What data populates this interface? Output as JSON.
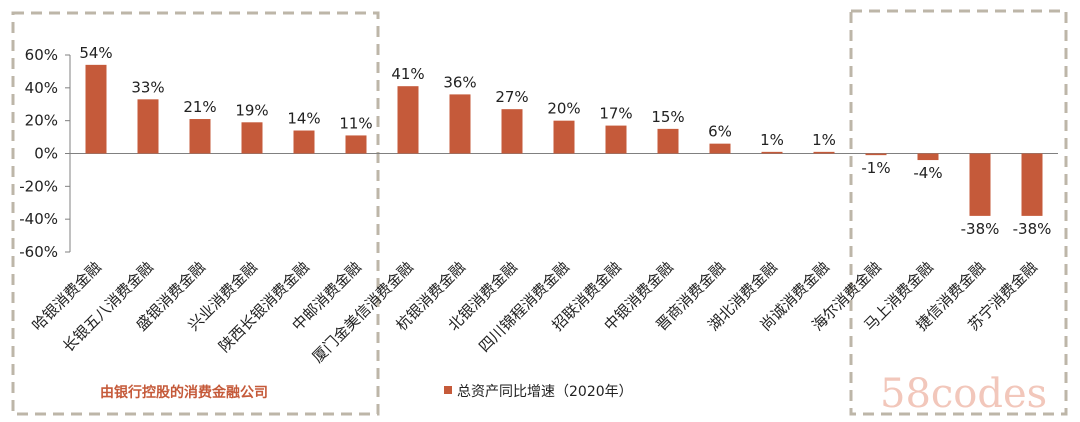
{
  "chart_data": {
    "type": "bar",
    "categories": [
      "哈银消费金融",
      "长银五八消费金融",
      "盛银消费金融",
      "兴业消费金融",
      "陕西长银消费金融",
      "中邮消费金融",
      "厦门金美信消费金融",
      "杭银消费金融",
      "北银消费金融",
      "四川锦程消费金融",
      "招联消费金融",
      "中银消费金融",
      "晋商消费金融",
      "湖北消费金融",
      "尚诚消费金融",
      "海尔消费金融",
      "马上消费金融",
      "捷信消费金融",
      "苏宁消费金融"
    ],
    "series": [
      {
        "name": "总资产同比增速（2020年）",
        "values": [
          54,
          33,
          21,
          19,
          14,
          11,
          41,
          36,
          27,
          20,
          17,
          15,
          6,
          1,
          1,
          -1,
          -4,
          -38,
          -38
        ],
        "labels": [
          "54%",
          "33%",
          "21%",
          "19%",
          "14%",
          "11%",
          "41%",
          "36%",
          "27%",
          "20%",
          "17%",
          "15%",
          "6%",
          "1%",
          "1%",
          "-1%",
          "-4%",
          "-38%",
          "-38%"
        ],
        "color": "#c55a3a"
      }
    ],
    "yticks": [
      "60%",
      "40%",
      "20%",
      "0%",
      "-20%",
      "-40%",
      "-60%"
    ],
    "ylim": [
      -60,
      60
    ],
    "grid": false,
    "legend": "bottom-center"
  },
  "group_label": "由银行控股的消费金融公司",
  "watermark": "58codes",
  "colors": {
    "bar": "#c55a3a",
    "box": "#bdb6a8",
    "axis": "#808080"
  }
}
